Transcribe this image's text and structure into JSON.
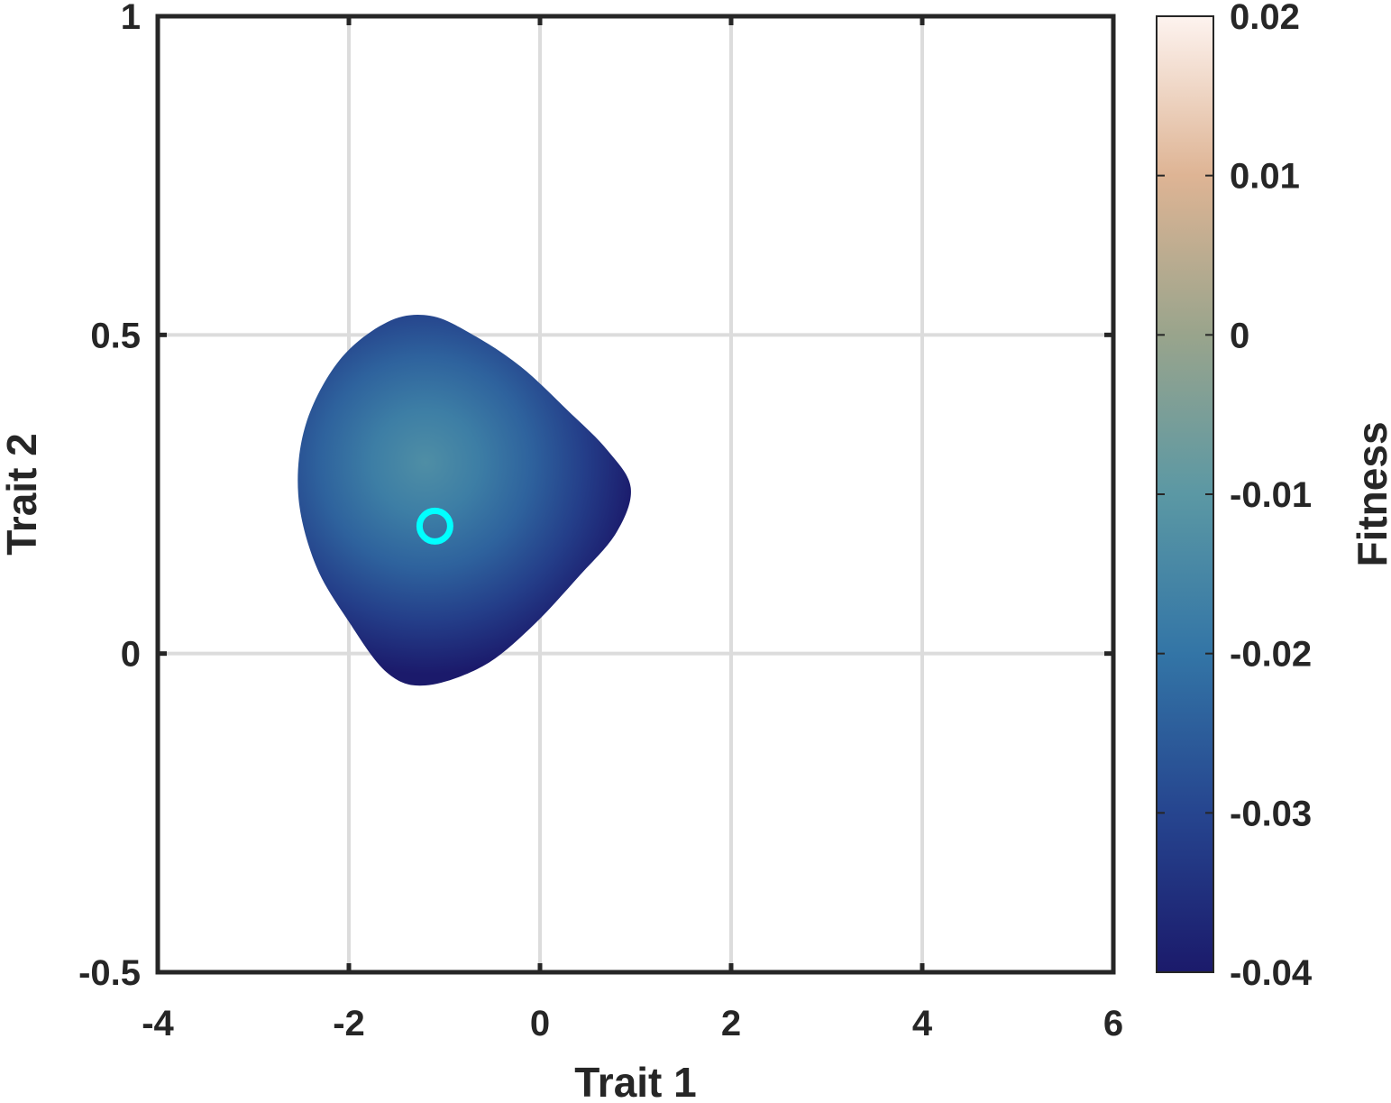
{
  "chart_data": {
    "type": "heatmap",
    "xlabel": "Trait 1",
    "ylabel": "Trait 2",
    "xlim": [
      -4,
      6
    ],
    "ylim": [
      -0.5,
      1
    ],
    "xticks": [
      -4,
      -2,
      0,
      2,
      4,
      6
    ],
    "xtick_labels": [
      "-4",
      "-2",
      "0",
      "2",
      "4",
      "6"
    ],
    "yticks": [
      -0.5,
      0,
      0.5,
      1
    ],
    "ytick_labels": [
      "-0.5",
      "0",
      "0.5",
      "1"
    ],
    "grid": true,
    "colorbar": {
      "label": "Fitness",
      "range": [
        -0.04,
        0.02
      ],
      "ticks": [
        -0.04,
        -0.03,
        -0.02,
        -0.01,
        0,
        0.01,
        0.02
      ],
      "tick_labels": [
        "-0.04",
        "-0.03",
        "-0.02",
        "-0.01",
        "0",
        "0.01",
        "0.02"
      ],
      "colormap": [
        {
          "value": -0.04,
          "color": "#1b1a6b"
        },
        {
          "value": -0.03,
          "color": "#26458f"
        },
        {
          "value": -0.02,
          "color": "#3375a6"
        },
        {
          "value": -0.01,
          "color": "#5b98a4"
        },
        {
          "value": 0,
          "color": "#99a48c"
        },
        {
          "value": 0.01,
          "color": "#deb494"
        },
        {
          "value": 0.02,
          "color": "#fdf3ef"
        }
      ]
    },
    "region": {
      "peak_fitness": -0.013,
      "peak": {
        "x": -1.2,
        "y": 0.3
      },
      "edge_fitness": -0.04,
      "boundary": [
        [
          -1.15,
          0.53
        ],
        [
          -0.7,
          0.5
        ],
        [
          -0.2,
          0.45
        ],
        [
          0.3,
          0.38
        ],
        [
          0.7,
          0.32
        ],
        [
          0.95,
          0.26
        ],
        [
          0.8,
          0.19
        ],
        [
          0.4,
          0.12
        ],
        [
          -0.1,
          0.04
        ],
        [
          -0.6,
          -0.02
        ],
        [
          -1.2,
          -0.05
        ],
        [
          -1.6,
          -0.03
        ],
        [
          -2.0,
          0.05
        ],
        [
          -2.35,
          0.14
        ],
        [
          -2.53,
          0.25
        ],
        [
          -2.45,
          0.36
        ],
        [
          -2.1,
          0.46
        ],
        [
          -1.6,
          0.52
        ]
      ]
    },
    "marker": {
      "x": -1.1,
      "y": 0.2,
      "shape": "circle",
      "color": "#00ffff"
    }
  }
}
